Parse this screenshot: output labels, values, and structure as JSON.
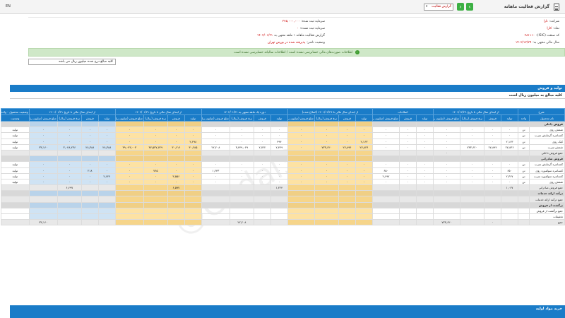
{
  "header": {
    "title": "گزارش فعالیت ماهانه",
    "report_type": "گزارش فعالیت",
    "lang": "EN"
  },
  "info": {
    "company_label": "شرکت:",
    "company_value": "نارا",
    "symbol_label": "نماد:",
    "symbol_value": "کارا",
    "isic_label": "کد صنعت (ISIC):",
    "isic_value": "۲۸۱۱۱۰",
    "fiscal_label": "سال مالی منتهی به:",
    "fiscal_value": "۱۴۰۲/۱۲/۲۹",
    "capital_label": "سرمایه ثبت شده:",
    "capital_value": "۳۷۵,۰۰۰,۰۰۰",
    "unregistered_label": "سرمایه ثبت نشده:",
    "unregistered_value": "۰",
    "period_label": "گزارش فعالیت ماهانه ۱ ماهه منتهی به",
    "period_value": "۱۴۰۲/۰۱/۳۱",
    "status_label": "وضعیت ناشر:",
    "status_value": "پذیرفته شده در بورس تهران"
  },
  "notice": "اطلاعات صورت‌های مالی حسابرسی نشده است / اطلاعات سالیانه حسابرسی نشده است",
  "unit_dropdown": "کلیه مبالغ درج شده میلیون ریال می باشد",
  "section": {
    "title": "تولید و فروش",
    "subtitle": "کلیه مبالغ به میلیون ریال است"
  },
  "table": {
    "groups": [
      "شرح",
      "از ابتدای سال مالی تا تاریخ ۱۴۰۱/۱۲/۲۹",
      "اصلاحات",
      "از ابتدای سال مالی تا ۱۴۰۱/۱۲/۲۹ (اصلاح شده)",
      "دوره یک ماهه منتهی به ۱۴۰۲/۰۱/۳۱",
      "از ابتدای سال مالی تا تاریخ ۱۴۰۲/۰۱/۳۱",
      "از ابتدای سال مالی تا تاریخ ۱۴۰۱/۰۱/۳۱",
      "وضعیت محصول - واحد"
    ],
    "subheaders": [
      "نام محصول",
      "واحد",
      "تولید",
      "فروش",
      "نرخ فروش (ریال)",
      "مبلغ فروش (میلیون ریال)",
      "تولید",
      "فروش",
      "مبلغ فروش (میلیون ریال)",
      "تولید",
      "فروش",
      "نرخ فروش (ریال)",
      "مبلغ فروش (میلیون ریال)",
      "تولید",
      "فروش",
      "نرخ فروش (ریال)",
      "مبلغ فروش (میلیون ریال)",
      "تولید",
      "فروش",
      "نرخ فروش (ریال)",
      "مبلغ فروش (میلیون ریال)",
      "تولید",
      "فروش",
      "نرخ فروش (ریال)",
      "مبلغ فروش (میلیون ریال)",
      "وضعیت"
    ],
    "rows": [
      {
        "type": "cat",
        "cells": [
          "فروش داخلی",
          "",
          "",
          "",
          "",
          "",
          "",
          "",
          "",
          "",
          "",
          "",
          "",
          "",
          "",
          "",
          "",
          "",
          "",
          "",
          "",
          "",
          "",
          "",
          "",
          ""
        ]
      },
      {
        "type": "row",
        "cells": [
          "شمش روی",
          "تن",
          "۰",
          "۰",
          "۰",
          "۰",
          "۰",
          "۰",
          "۰",
          "۰",
          "۰",
          "۰",
          "۰",
          "۰",
          "۰",
          "۰",
          "۰",
          "۰",
          "۰",
          "۰",
          "۰",
          "۰",
          "۰",
          "۰",
          "۰",
          "تولید"
        ]
      },
      {
        "type": "row",
        "cells": [
          "کنسانتره گرمایش سرب",
          "تن",
          "۰",
          "۰",
          "۰",
          "۰",
          "۰",
          "۰",
          "۰",
          "۰",
          "۰",
          "۰",
          "۰",
          "۰",
          "۰",
          "۰",
          "۰",
          "۰",
          "۰",
          "۰",
          "۰",
          "۰",
          "۰",
          "۰",
          "۰",
          "تولید"
        ]
      },
      {
        "type": "row",
        "cells": [
          "کیک روی",
          "تن",
          "۲,۱۶۳",
          "۰",
          "۰",
          "۰",
          "۰",
          "۰",
          "۰",
          "۲,۱۶۳",
          "۰",
          "۰",
          "۰",
          "۲۹۴",
          "۰",
          "۰",
          "۰",
          "۲,۲۹۸",
          "۰",
          "۰",
          "۰",
          "۰",
          "۰",
          "۰",
          "۰",
          "تولید"
        ]
      },
      {
        "type": "row",
        "cells": [
          "شمش سرب",
          "تن",
          "۲۷,۸۳۶",
          "۲۷,۸۹۴",
          "۷۳۳,۶۲۰",
          "۰",
          "۰",
          "۰",
          "۰",
          "۲۷,۸۳۶",
          "۲۷,۸۹۴",
          "۷۳۳,۶۲۰",
          "۰",
          "۲,۴۴۹",
          "۲,۷۲۲",
          "۳,۴۴۹,۰۲۹",
          "۲۲,۲۰۸",
          "۳۰,۲۸۵",
          "۳۰,۶۱۶",
          "۳۷,۵۳۷,۷۲۹",
          "۳۹,۰۴۳,۰۰۳",
          "۲۸,۳۸۸",
          "۲۸,۳۸۸",
          "۳,۰۴۸,۲۳۶",
          "۳۳,۱۶۰",
          "تولید"
        ]
      },
      {
        "type": "sum",
        "cells": [
          "جمع فروش داخلی",
          "",
          "",
          "",
          "",
          "۰",
          "",
          "",
          "",
          "",
          "",
          "",
          "",
          "",
          "",
          "",
          "",
          "",
          "",
          "",
          "",
          "",
          "",
          "",
          "",
          ""
        ]
      },
      {
        "type": "cat",
        "cells": [
          "فروش صادراتی",
          "",
          "",
          "",
          "",
          "",
          "",
          "",
          "",
          "",
          "",
          "",
          "",
          "",
          "",
          "",
          "",
          "",
          "",
          "",
          "",
          "",
          "",
          "",
          "",
          ""
        ]
      },
      {
        "type": "row",
        "cells": [
          "کنسانتره گرمایش سرب",
          "تن",
          "۰",
          "۰",
          "۰",
          "۰",
          "۰",
          "۰",
          "۰",
          "۰",
          "۰",
          "۰",
          "۰",
          "۰",
          "۰",
          "۰",
          "۰",
          "۰",
          "۰",
          "۰",
          "۰",
          "۰",
          "۰",
          "۰",
          "۰",
          "تولید"
        ]
      },
      {
        "type": "row",
        "cells": [
          "کنسانتره سولفوره روی",
          "تن",
          "۶۵۰",
          "۰",
          "۰",
          "۰",
          "۰",
          "۰",
          "۶۵۰",
          "۰",
          "۰",
          "۰",
          "۰",
          "۰",
          "۰",
          "۰",
          "۱,۲۴۳",
          "۰",
          "۰",
          "۷۶۵",
          "۰",
          "۰",
          "۲۱۸",
          "۰",
          "۰",
          "تولید"
        ]
      },
      {
        "type": "row",
        "cells": [
          "کنسانتره سولفوره سرب",
          "تن",
          "۲,۳۶۷",
          "۰",
          "۰",
          "۰",
          "۰",
          "۰",
          "۲,۶۹۷",
          "۰",
          "۰",
          "۰",
          "۰",
          "۰",
          "۰",
          "۰",
          "۰",
          "۰",
          "۳,۵۵۶",
          "۰",
          "۰",
          "۲,۶۲۴",
          "۰",
          "۰",
          "۰",
          "تولید"
        ]
      },
      {
        "type": "row",
        "cells": [
          "شمش روی",
          "تن",
          "۰",
          "۰",
          "۰",
          "۰",
          "۰",
          "۰",
          "۰",
          "۰",
          "۰",
          "۰",
          "۰",
          "۰",
          "۰",
          "۰",
          "۰",
          "۰",
          "۰",
          "۰",
          "۰",
          "۰",
          "۰",
          "۰",
          "۰",
          "تولید"
        ]
      },
      {
        "type": "sum",
        "cells": [
          "جمع فروش صادراتی",
          "",
          "۱,۰۶۷",
          "",
          "",
          "",
          "",
          "",
          "",
          "",
          "",
          "",
          "",
          "۱,۲۲۴",
          "",
          "",
          "",
          "",
          "۶,۵۹۷",
          "",
          "",
          "",
          "",
          "۶,۶۹۷",
          "",
          ""
        ]
      },
      {
        "type": "cat",
        "cells": [
          "درآمد ارائه خدمات",
          "",
          "",
          "",
          "",
          "",
          "",
          "",
          "",
          "",
          "",
          "",
          "",
          "",
          "",
          "",
          "",
          "",
          "",
          "",
          "",
          "",
          "",
          "",
          "",
          ""
        ]
      },
      {
        "type": "sum",
        "cells": [
          "جمع درآمد ارائه خدمات",
          "",
          "",
          "",
          "",
          "",
          "",
          "",
          "",
          "",
          "",
          "",
          "",
          "",
          "",
          "",
          "",
          "",
          "",
          "",
          "",
          "",
          "",
          "",
          "",
          ""
        ]
      },
      {
        "type": "cat",
        "cells": [
          "برگشت از فروش",
          "",
          "",
          "",
          "",
          "",
          "",
          "",
          "",
          "",
          "",
          "",
          "",
          "",
          "",
          "",
          "",
          "",
          "",
          "",
          "",
          "",
          "",
          "",
          "",
          ""
        ]
      },
      {
        "type": "row",
        "cells": [
          "جمع برگشت از فروش",
          "",
          "",
          "",
          "",
          "",
          "",
          "",
          "",
          "",
          "",
          "",
          "",
          "",
          "",
          "",
          "",
          "",
          "",
          "",
          "",
          "",
          "",
          "",
          "",
          ""
        ]
      },
      {
        "type": "row",
        "cells": [
          "تخفیفات",
          "",
          "",
          "",
          "",
          "",
          "",
          "",
          "",
          "",
          "",
          "",
          "",
          "",
          "",
          "",
          "",
          "",
          "",
          "",
          "",
          "",
          "",
          "",
          "",
          ""
        ]
      },
      {
        "type": "sum",
        "cells": [
          "جمع",
          "",
          "",
          "۰",
          "",
          "۷۳۳,۶۲۰",
          "",
          "",
          "",
          "",
          "",
          "",
          "",
          "",
          "",
          "۲۲,۲۰۸",
          "",
          "",
          "",
          "",
          "",
          "",
          "",
          "",
          "۳۳,۱۶۰",
          ""
        ]
      }
    ]
  },
  "bottom_section": "خرید مواد اولیه",
  "watermark": "@Codal360.ir",
  "colors": {
    "accent": "#1a7cc8",
    "highlight": "#fde2a3",
    "notice": "#cfe8c8",
    "value_red": "#c00000"
  }
}
